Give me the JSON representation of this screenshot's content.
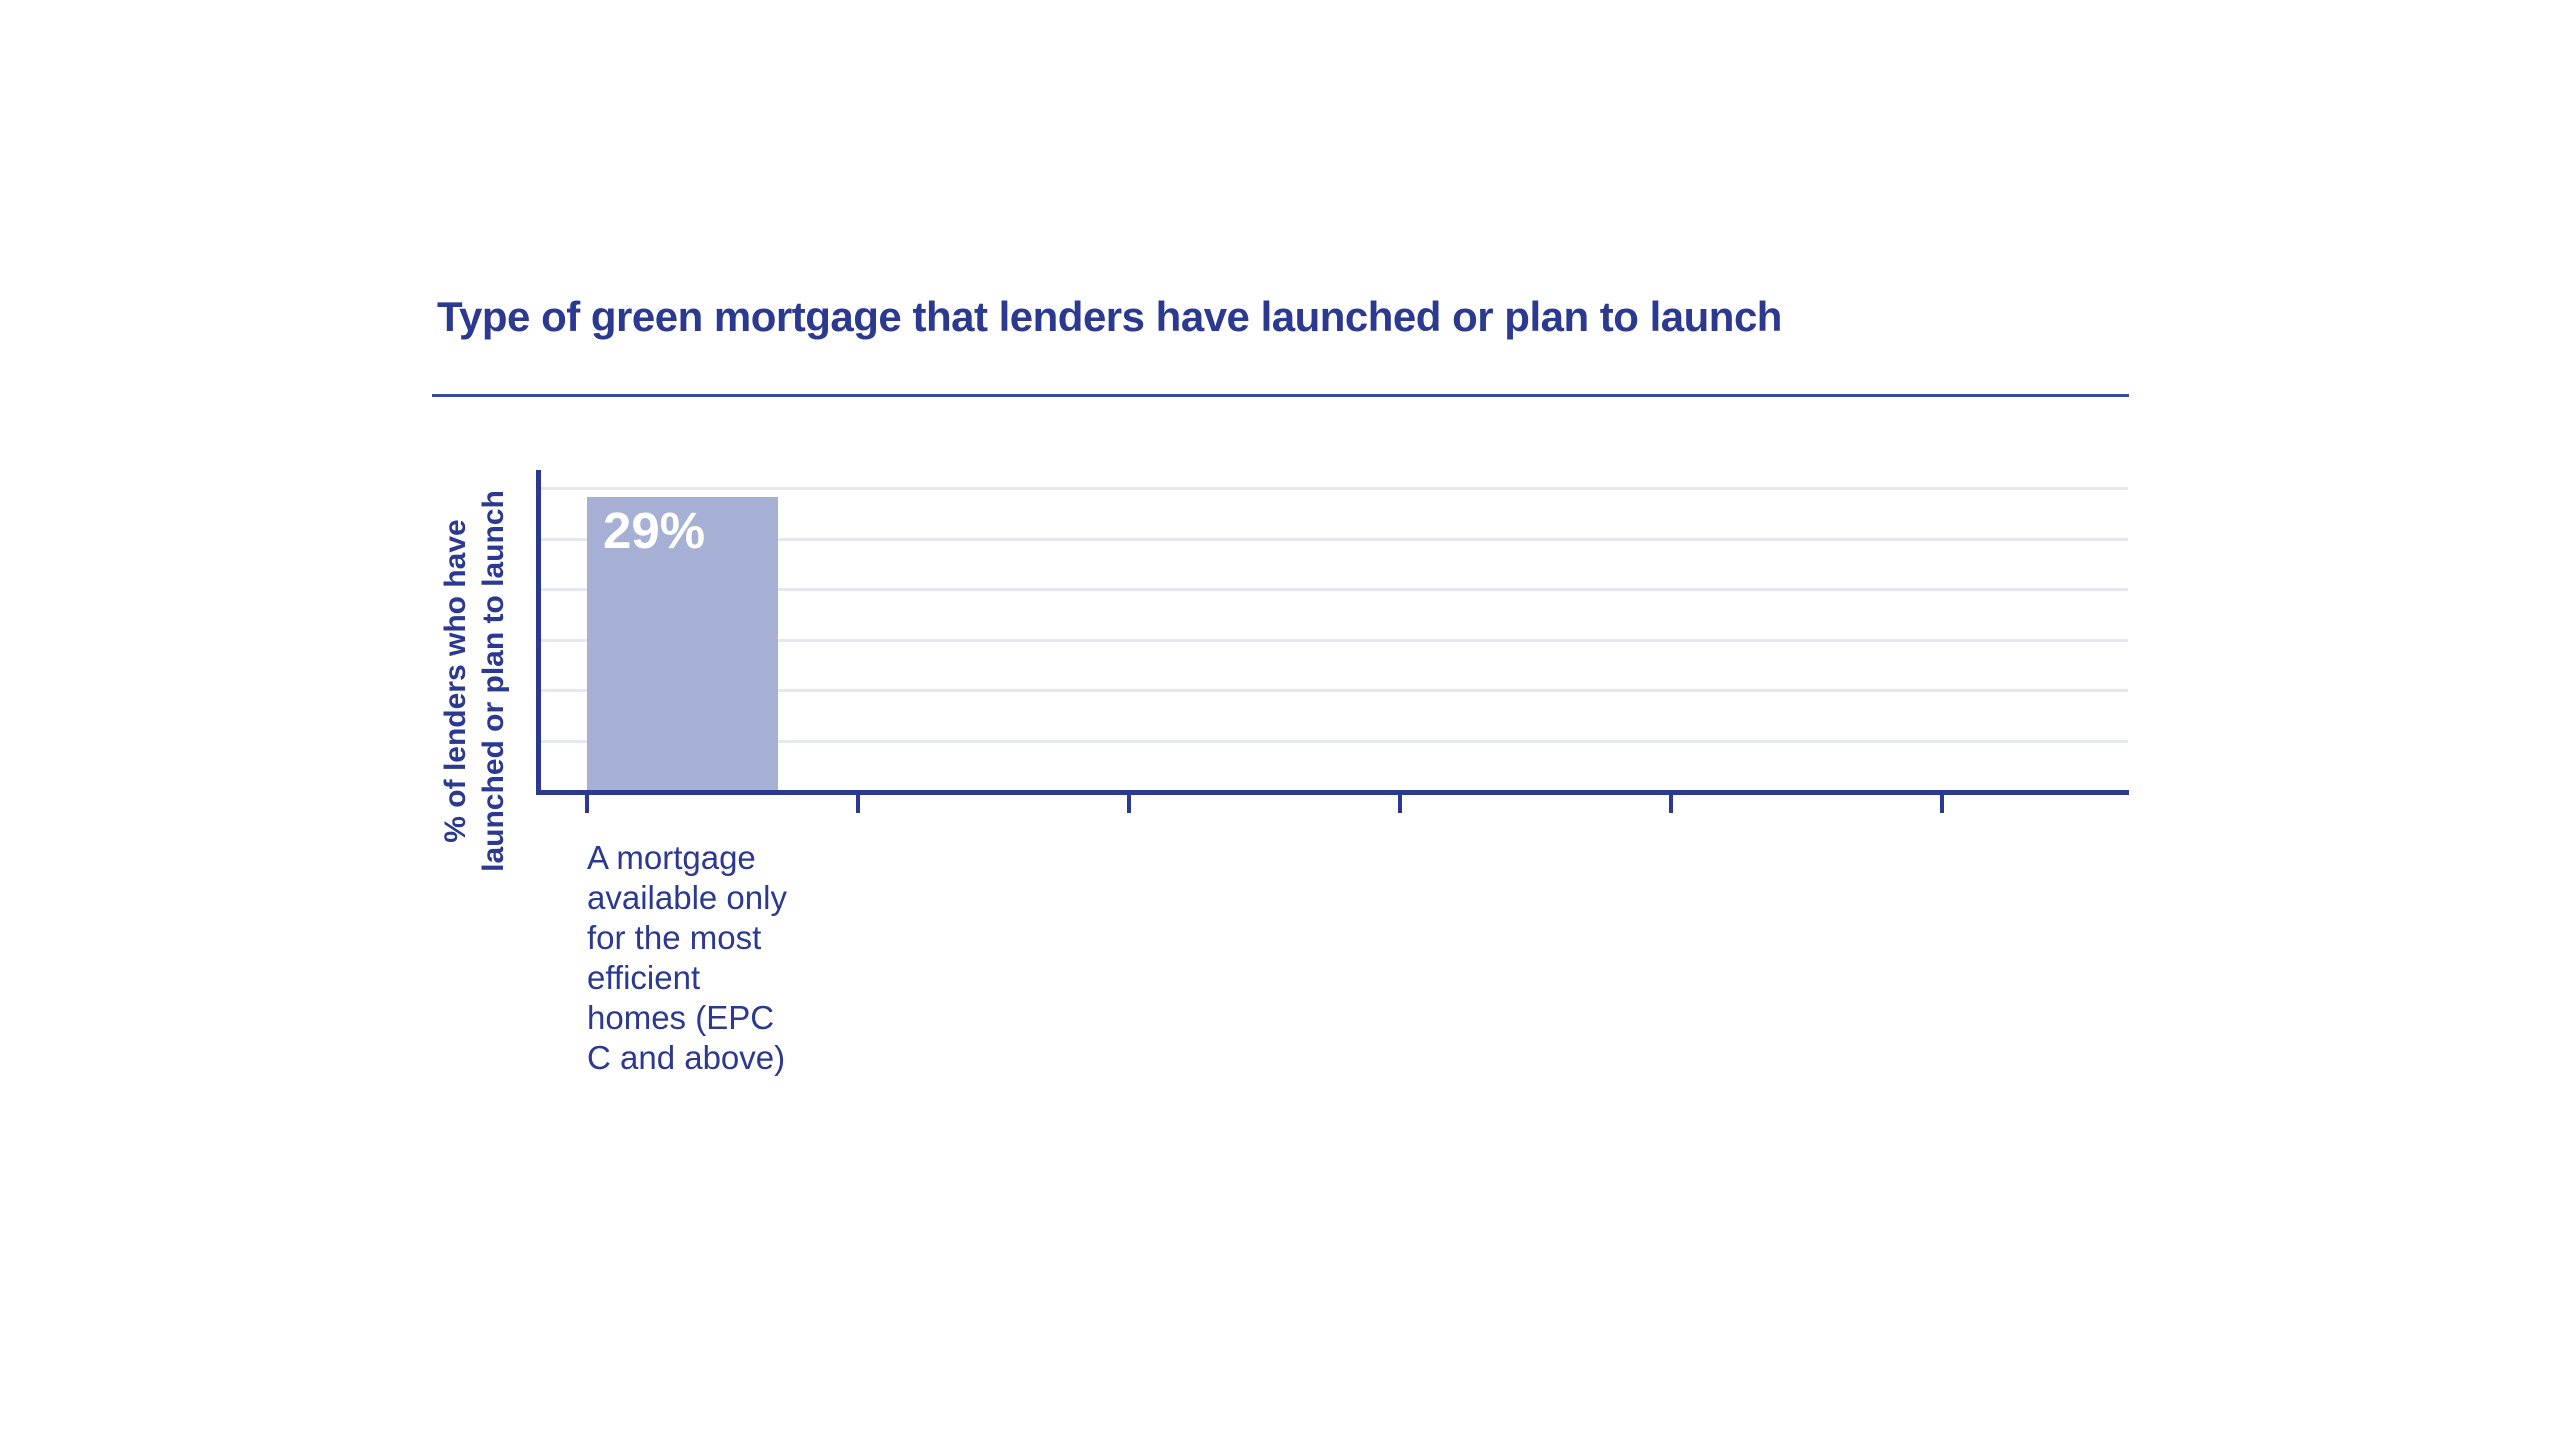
{
  "chart_data": {
    "type": "bar",
    "title": "Type of green mortgage that lenders have launched or plan to launch",
    "ylabel": "% of lenders who have launched or plan to launch",
    "ylabel_lines": [
      "% of lenders who have",
      "launched or plan to launch"
    ],
    "xlabel": "",
    "categories": [
      "A mortgage available only for the most efficient homes (EPC C and above)"
    ],
    "category_label_lines": [
      [
        "A mortgage",
        "available only",
        "for the most",
        "efficient",
        "homes (EPC",
        "C and above)"
      ]
    ],
    "values": [
      29
    ],
    "value_labels": [
      "29%"
    ],
    "ylim": [
      0,
      30
    ],
    "gridline_step": 5,
    "grid": "horizontal",
    "y_tick_labels_shown": false,
    "x_slot_count": 6,
    "legend": "none",
    "colors": {
      "bar": "#a6afd4",
      "axis": "#2b3990",
      "text": "#2b3990",
      "gridline": "#e6e8f1",
      "divider": "#3a489b",
      "value_label": "#ffffff",
      "background": "#ffffff"
    }
  }
}
